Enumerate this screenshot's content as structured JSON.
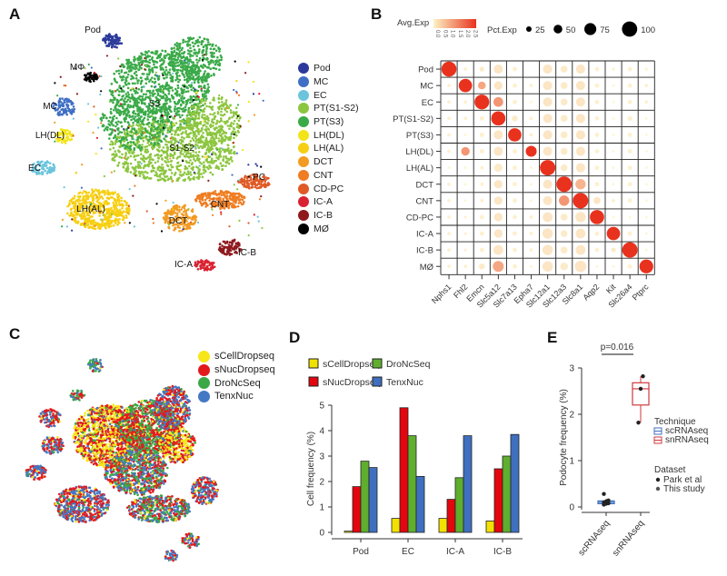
{
  "panels": {
    "A": "A",
    "B": "B",
    "C": "C",
    "D": "D",
    "E": "E"
  },
  "chart_data": [
    {
      "panel": "A",
      "type": "scatter",
      "title": "",
      "cluster_labels": [
        "Pod",
        "MΦ",
        "MC",
        "LH(DL)",
        "EC",
        "S3",
        "S1-S2",
        "LH(AL)",
        "DCT",
        "CNT",
        "PC",
        "IC-B",
        "IC-A"
      ],
      "legend": [
        {
          "label": "Pod",
          "color": "#2b3a9a"
        },
        {
          "label": "MC",
          "color": "#3f6fc4"
        },
        {
          "label": "EC",
          "color": "#6bc4dc"
        },
        {
          "label": "PT(S1-S2)",
          "color": "#8cc63f"
        },
        {
          "label": "PT(S3)",
          "color": "#3aaa48"
        },
        {
          "label": "LH(DL)",
          "color": "#f2e418"
        },
        {
          "label": "LH(AL)",
          "color": "#f7cf12"
        },
        {
          "label": "DCT",
          "color": "#f39a22"
        },
        {
          "label": "CNT",
          "color": "#ef7d22"
        },
        {
          "label": "CD-PC",
          "color": "#e05a26"
        },
        {
          "label": "IC-A",
          "color": "#d92231"
        },
        {
          "label": "IC-B",
          "color": "#8e1a1e"
        },
        {
          "label": "MØ",
          "color": "#000000"
        }
      ],
      "legend_position": "right"
    },
    {
      "panel": "B",
      "type": "heatmap",
      "title": "",
      "color_legend": {
        "title": "Avg.Exp",
        "ticks": [
          "0.0",
          "0.5",
          "1.0",
          "1.5",
          "2.0",
          "2.5"
        ],
        "low": "#fdf3c4",
        "high": "#e8321e"
      },
      "size_legend": {
        "title": "Pct.Exp",
        "ticks": [
          25,
          50,
          75,
          100
        ]
      },
      "rows": [
        "Pod",
        "MC",
        "EC",
        "PT(S1-S2)",
        "PT(S3)",
        "LH(DL)",
        "LH(AL)",
        "DCT",
        "CNT",
        "CD-PC",
        "IC-A",
        "IC-B",
        "MØ"
      ],
      "columns": [
        "Nphs1",
        "Fhl2",
        "Emcn",
        "Slc5a12",
        "Slc7a13",
        "Epha7",
        "Slc12a1",
        "Slc12a3",
        "Slc8a1",
        "Aqp2",
        "Kit",
        "Slc26a4",
        "Ptprc"
      ],
      "avg_exp": [
        [
          2.5,
          0.1,
          0.2,
          0.3,
          0.1,
          0,
          0.3,
          0.2,
          0.3,
          0.1,
          0,
          0.1,
          0
        ],
        [
          0.1,
          2.5,
          1.0,
          0.3,
          0.1,
          0.1,
          0.3,
          0.2,
          0.3,
          0.1,
          0,
          0.1,
          0.1
        ],
        [
          0.1,
          0.1,
          2.5,
          1.2,
          0.1,
          0,
          0.3,
          0.2,
          0.3,
          0.1,
          0,
          0.1,
          0.1
        ],
        [
          0.1,
          0.1,
          0.1,
          2.5,
          0.2,
          0.1,
          0.3,
          0.2,
          0.3,
          0.1,
          0,
          0.1,
          0
        ],
        [
          0.1,
          0,
          0.1,
          0.3,
          2.5,
          0.1,
          0.3,
          0.2,
          0.3,
          0.1,
          0,
          0.1,
          0
        ],
        [
          0.1,
          1.2,
          0.1,
          0.3,
          0.1,
          2.5,
          0.3,
          0.2,
          0.3,
          0.1,
          0,
          0.1,
          0
        ],
        [
          0,
          0,
          0.1,
          0.2,
          0.1,
          0,
          2.5,
          0.2,
          0.3,
          0.1,
          0,
          0.1,
          0
        ],
        [
          0.1,
          0,
          0.1,
          0.3,
          0.1,
          0,
          0.3,
          2.5,
          0.8,
          0.1,
          0,
          0.1,
          0
        ],
        [
          0.1,
          0,
          0.1,
          0.3,
          0.1,
          0,
          0.3,
          1.2,
          2.5,
          0.3,
          0.1,
          0.1,
          0
        ],
        [
          0.1,
          0.1,
          0.1,
          0.3,
          0.1,
          0.1,
          0.3,
          0.2,
          0.3,
          2.5,
          0,
          0,
          0
        ],
        [
          0.1,
          0.1,
          0.1,
          0.3,
          0.1,
          0.1,
          0.3,
          0.2,
          0.3,
          0.1,
          2.5,
          0.1,
          0
        ],
        [
          0.1,
          0.1,
          0.1,
          0.3,
          0.1,
          0.1,
          0.3,
          0.2,
          0.3,
          0.1,
          0.2,
          2.5,
          0
        ],
        [
          0.1,
          0.1,
          0.2,
          1.0,
          0.1,
          0,
          0.3,
          0.2,
          0.3,
          0,
          0,
          0.1,
          2.5
        ]
      ],
      "pct_exp": [
        [
          95,
          5,
          10,
          35,
          8,
          0,
          35,
          20,
          35,
          8,
          5,
          8,
          5
        ],
        [
          5,
          75,
          25,
          30,
          8,
          5,
          35,
          20,
          35,
          8,
          3,
          8,
          5
        ],
        [
          5,
          5,
          90,
          40,
          8,
          3,
          35,
          20,
          35,
          8,
          3,
          8,
          5
        ],
        [
          5,
          5,
          8,
          85,
          15,
          5,
          35,
          20,
          35,
          8,
          3,
          10,
          3
        ],
        [
          5,
          3,
          8,
          35,
          75,
          5,
          35,
          20,
          35,
          8,
          3,
          8,
          3
        ],
        [
          5,
          30,
          8,
          35,
          8,
          50,
          35,
          20,
          35,
          8,
          3,
          8,
          3
        ],
        [
          3,
          3,
          5,
          30,
          8,
          3,
          100,
          20,
          35,
          8,
          3,
          8,
          3
        ],
        [
          5,
          3,
          5,
          30,
          8,
          3,
          35,
          100,
          45,
          8,
          3,
          8,
          3
        ],
        [
          5,
          3,
          5,
          30,
          8,
          3,
          35,
          45,
          100,
          20,
          5,
          8,
          3
        ],
        [
          5,
          3,
          8,
          30,
          8,
          5,
          40,
          20,
          45,
          85,
          3,
          3,
          3
        ],
        [
          5,
          3,
          8,
          30,
          8,
          5,
          45,
          20,
          40,
          8,
          75,
          8,
          3
        ],
        [
          5,
          3,
          8,
          40,
          8,
          5,
          45,
          20,
          40,
          8,
          10,
          100,
          3
        ],
        [
          5,
          5,
          15,
          50,
          8,
          3,
          45,
          25,
          55,
          3,
          3,
          8,
          80
        ]
      ]
    },
    {
      "panel": "C",
      "type": "scatter",
      "title": "",
      "legend": [
        {
          "label": "sCellDropseq",
          "color": "#f7e61a"
        },
        {
          "label": "sNucDropseq",
          "color": "#e31a1c"
        },
        {
          "label": "DroNcSeq",
          "color": "#3aa845"
        },
        {
          "label": "TenxNuc",
          "color": "#4477c4"
        }
      ],
      "legend_position": "top-right"
    },
    {
      "panel": "D",
      "type": "bar",
      "title": "",
      "xlabel": "",
      "ylabel": "Cell frequency (%)",
      "ylim": [
        0,
        5
      ],
      "yticks": [
        0,
        1,
        2,
        3,
        4,
        5
      ],
      "categories": [
        "Pod",
        "EC",
        "IC-A",
        "IC-B"
      ],
      "series": [
        {
          "name": "sCellDropseq",
          "color": "#f2e100",
          "values": [
            0.05,
            0.55,
            0.55,
            0.45
          ]
        },
        {
          "name": "sNucDropseq",
          "color": "#e3060f",
          "values": [
            1.8,
            4.9,
            1.3,
            2.5
          ]
        },
        {
          "name": "DroNcSeq",
          "color": "#5fae2e",
          "values": [
            2.8,
            3.8,
            2.15,
            3.0
          ]
        },
        {
          "name": "TenxNuc",
          "color": "#3f6fbf",
          "values": [
            2.55,
            2.2,
            3.8,
            3.85
          ]
        }
      ],
      "legend_position": "top"
    },
    {
      "panel": "E",
      "type": "box",
      "title": "",
      "ylabel": "Podocyte frequency (%)",
      "ylim": [
        0,
        3
      ],
      "yticks": [
        0,
        1,
        2,
        3
      ],
      "categories": [
        "scRNAseq",
        "snRNAseq"
      ],
      "annotation": "p=0.016",
      "boxes": [
        {
          "name": "scRNAseq",
          "color": "#3f6fbf",
          "min": 0.05,
          "q1": 0.07,
          "median": 0.1,
          "q3": 0.13,
          "max": 0.17,
          "points": [
            0.05,
            0.07,
            0.08,
            0.1,
            0.12,
            0.14,
            0.28
          ]
        },
        {
          "name": "snRNAseq",
          "color": "#d0383e",
          "min": 1.82,
          "q1": 2.2,
          "median": 2.55,
          "q3": 2.68,
          "max": 2.82,
          "points": [
            1.82,
            2.55,
            2.82
          ]
        }
      ],
      "legend": {
        "technique_title": "Technique",
        "technique": [
          {
            "label": "scRNAseq",
            "color": "#3f6fbf"
          },
          {
            "label": "snRNAseq",
            "color": "#d0383e"
          }
        ],
        "dataset_title": "Dataset",
        "dataset": [
          {
            "label": "Park et al",
            "color": "#222"
          },
          {
            "label": "This study",
            "color": "#555"
          }
        ]
      },
      "legend_position": "right"
    }
  ]
}
